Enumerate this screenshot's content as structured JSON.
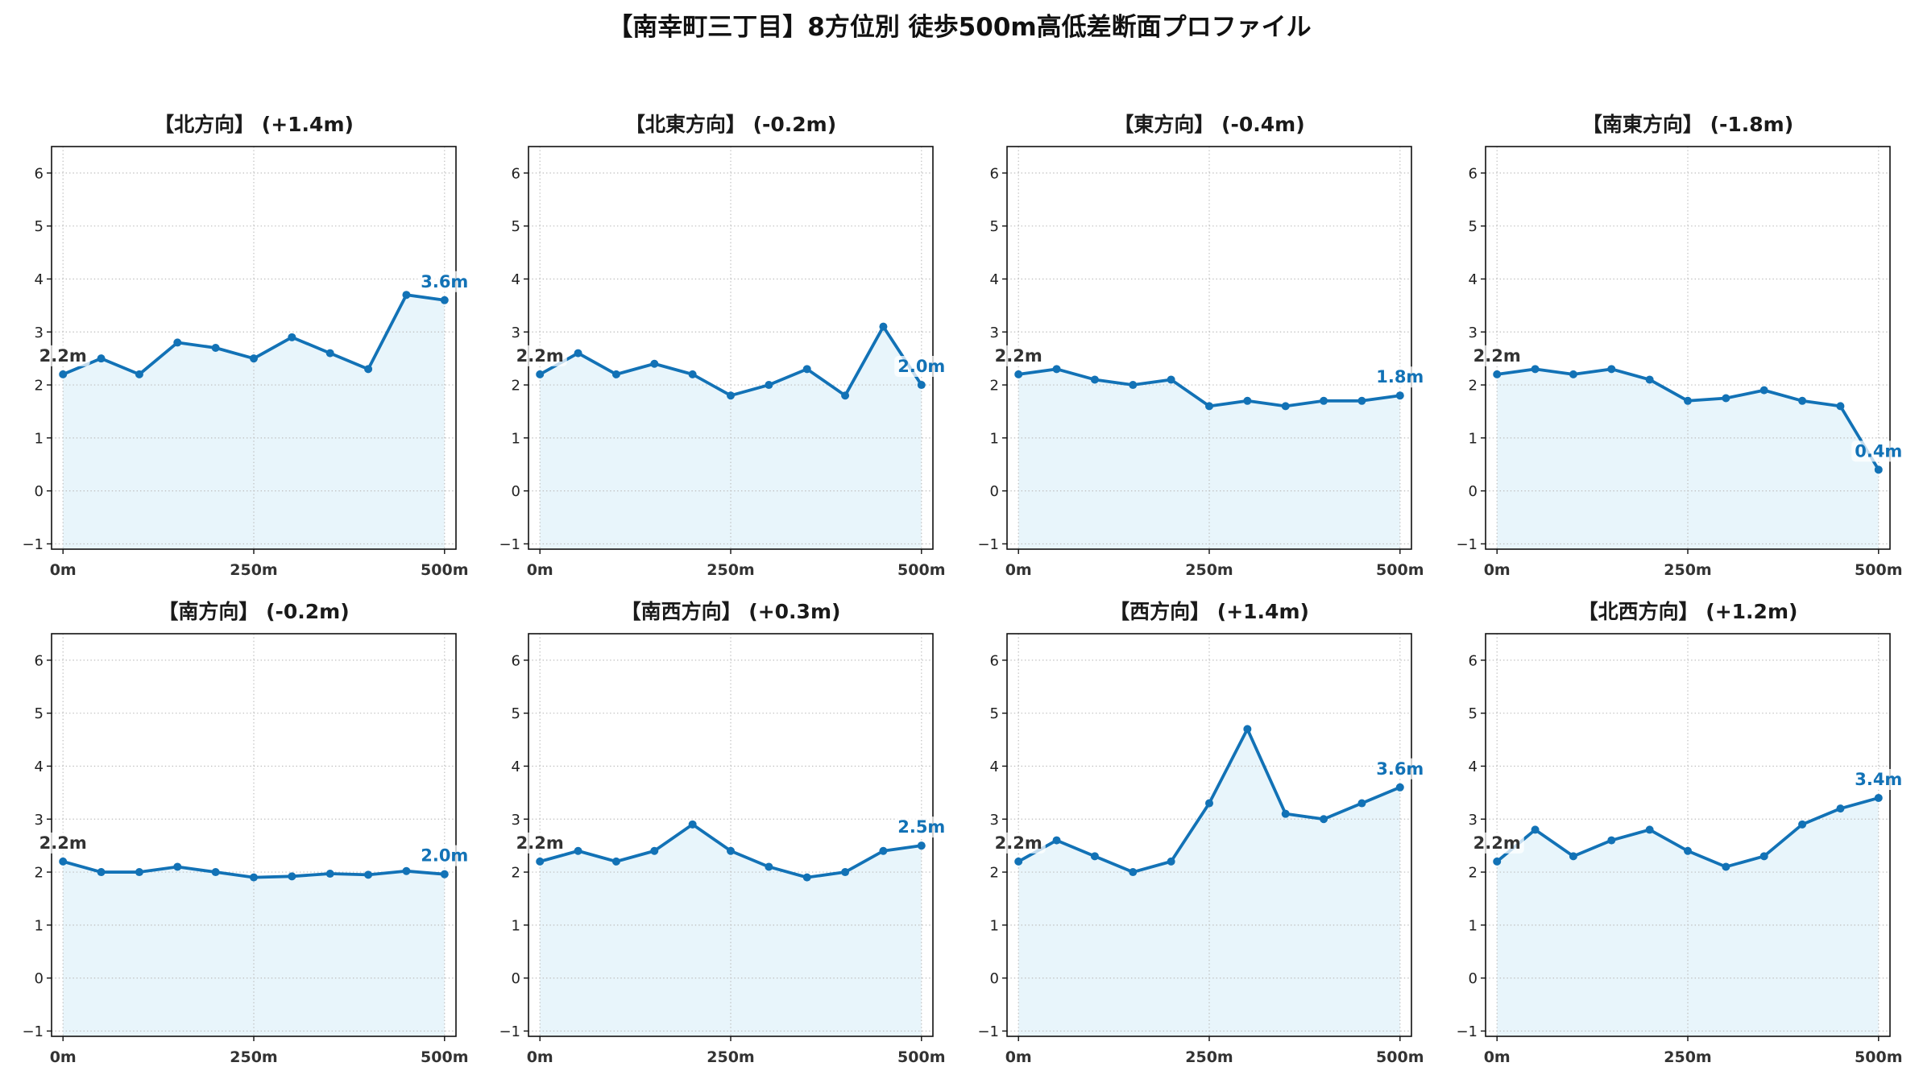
{
  "title": "【南幸町三丁目】8方位別 徒歩500m高低差断面プロファイル",
  "colors": {
    "line": "#1272b6",
    "fill": "#e8f5fb",
    "grid": "#bdbdbd",
    "frame": "#111111",
    "start_label": "#333333",
    "end_label": "#1272b6"
  },
  "chart_data": [
    {
      "type": "line",
      "area_fill": true,
      "markers": true,
      "title": "【北方向】 (+1.4m)",
      "x": [
        0,
        50,
        100,
        150,
        200,
        250,
        300,
        350,
        400,
        450,
        500
      ],
      "values": [
        2.2,
        2.5,
        2.2,
        2.8,
        2.7,
        2.5,
        2.9,
        2.6,
        2.3,
        3.7,
        3.6
      ],
      "xlim": [
        -15,
        515
      ],
      "ylim": [
        -1.1,
        6.5
      ],
      "xticks": [
        0,
        250,
        500
      ],
      "xtick_labels": [
        "0m",
        "250m",
        "500m"
      ],
      "yticks": [
        -1,
        0,
        1,
        2,
        3,
        4,
        5,
        6
      ],
      "ytick_labels": [
        "−1",
        "0",
        "1",
        "2",
        "3",
        "4",
        "5",
        "6"
      ],
      "grid": true,
      "start_label": "2.2m",
      "end_label": "3.6m"
    },
    {
      "type": "line",
      "area_fill": true,
      "markers": true,
      "title": "【北東方向】 (-0.2m)",
      "x": [
        0,
        50,
        100,
        150,
        200,
        250,
        300,
        350,
        400,
        450,
        500
      ],
      "values": [
        2.2,
        2.6,
        2.2,
        2.4,
        2.2,
        1.8,
        2.0,
        2.3,
        1.8,
        3.1,
        2.0
      ],
      "xlim": [
        -15,
        515
      ],
      "ylim": [
        -1.1,
        6.5
      ],
      "xticks": [
        0,
        250,
        500
      ],
      "xtick_labels": [
        "0m",
        "250m",
        "500m"
      ],
      "yticks": [
        -1,
        0,
        1,
        2,
        3,
        4,
        5,
        6
      ],
      "ytick_labels": [
        "−1",
        "0",
        "1",
        "2",
        "3",
        "4",
        "5",
        "6"
      ],
      "grid": true,
      "start_label": "2.2m",
      "end_label": "2.0m"
    },
    {
      "type": "line",
      "area_fill": true,
      "markers": true,
      "title": "【東方向】 (-0.4m)",
      "x": [
        0,
        50,
        100,
        150,
        200,
        250,
        300,
        350,
        400,
        450,
        500
      ],
      "values": [
        2.2,
        2.3,
        2.1,
        2.0,
        2.1,
        1.6,
        1.7,
        1.6,
        1.7,
        1.7,
        1.8
      ],
      "xlim": [
        -15,
        515
      ],
      "ylim": [
        -1.1,
        6.5
      ],
      "xticks": [
        0,
        250,
        500
      ],
      "xtick_labels": [
        "0m",
        "250m",
        "500m"
      ],
      "yticks": [
        -1,
        0,
        1,
        2,
        3,
        4,
        5,
        6
      ],
      "ytick_labels": [
        "−1",
        "0",
        "1",
        "2",
        "3",
        "4",
        "5",
        "6"
      ],
      "grid": true,
      "start_label": "2.2m",
      "end_label": "1.8m"
    },
    {
      "type": "line",
      "area_fill": true,
      "markers": true,
      "title": "【南東方向】 (-1.8m)",
      "x": [
        0,
        50,
        100,
        150,
        200,
        250,
        300,
        350,
        400,
        450,
        500
      ],
      "values": [
        2.2,
        2.3,
        2.2,
        2.3,
        2.1,
        1.7,
        1.75,
        1.9,
        1.7,
        1.6,
        0.4
      ],
      "xlim": [
        -15,
        515
      ],
      "ylim": [
        -1.1,
        6.5
      ],
      "xticks": [
        0,
        250,
        500
      ],
      "xtick_labels": [
        "0m",
        "250m",
        "500m"
      ],
      "yticks": [
        -1,
        0,
        1,
        2,
        3,
        4,
        5,
        6
      ],
      "ytick_labels": [
        "−1",
        "0",
        "1",
        "2",
        "3",
        "4",
        "5",
        "6"
      ],
      "grid": true,
      "start_label": "2.2m",
      "end_label": "0.4m"
    },
    {
      "type": "line",
      "area_fill": true,
      "markers": true,
      "title": "【南方向】 (-0.2m)",
      "x": [
        0,
        50,
        100,
        150,
        200,
        250,
        300,
        350,
        400,
        450,
        500
      ],
      "values": [
        2.2,
        2.0,
        2.0,
        2.1,
        2.0,
        1.9,
        1.92,
        1.97,
        1.95,
        2.02,
        1.96
      ],
      "xlim": [
        -15,
        515
      ],
      "ylim": [
        -1.1,
        6.5
      ],
      "xticks": [
        0,
        250,
        500
      ],
      "xtick_labels": [
        "0m",
        "250m",
        "500m"
      ],
      "yticks": [
        -1,
        0,
        1,
        2,
        3,
        4,
        5,
        6
      ],
      "ytick_labels": [
        "−1",
        "0",
        "1",
        "2",
        "3",
        "4",
        "5",
        "6"
      ],
      "grid": true,
      "start_label": "2.2m",
      "end_label": "2.0m"
    },
    {
      "type": "line",
      "area_fill": true,
      "markers": true,
      "title": "【南西方向】 (+0.3m)",
      "x": [
        0,
        50,
        100,
        150,
        200,
        250,
        300,
        350,
        400,
        450,
        500
      ],
      "values": [
        2.2,
        2.4,
        2.2,
        2.4,
        2.9,
        2.4,
        2.1,
        1.9,
        2.0,
        2.4,
        2.5
      ],
      "xlim": [
        -15,
        515
      ],
      "ylim": [
        -1.1,
        6.5
      ],
      "xticks": [
        0,
        250,
        500
      ],
      "xtick_labels": [
        "0m",
        "250m",
        "500m"
      ],
      "yticks": [
        -1,
        0,
        1,
        2,
        3,
        4,
        5,
        6
      ],
      "ytick_labels": [
        "−1",
        "0",
        "1",
        "2",
        "3",
        "4",
        "5",
        "6"
      ],
      "grid": true,
      "start_label": "2.2m",
      "end_label": "2.5m"
    },
    {
      "type": "line",
      "area_fill": true,
      "markers": true,
      "title": "【西方向】 (+1.4m)",
      "x": [
        0,
        50,
        100,
        150,
        200,
        250,
        300,
        350,
        400,
        450,
        500
      ],
      "values": [
        2.2,
        2.6,
        2.3,
        2.0,
        2.2,
        3.3,
        4.7,
        3.1,
        3.0,
        3.3,
        3.6
      ],
      "xlim": [
        -15,
        515
      ],
      "ylim": [
        -1.1,
        6.5
      ],
      "xticks": [
        0,
        250,
        500
      ],
      "xtick_labels": [
        "0m",
        "250m",
        "500m"
      ],
      "yticks": [
        -1,
        0,
        1,
        2,
        3,
        4,
        5,
        6
      ],
      "ytick_labels": [
        "−1",
        "0",
        "1",
        "2",
        "3",
        "4",
        "5",
        "6"
      ],
      "grid": true,
      "start_label": "2.2m",
      "end_label": "3.6m"
    },
    {
      "type": "line",
      "area_fill": true,
      "markers": true,
      "title": "【北西方向】 (+1.2m)",
      "x": [
        0,
        50,
        100,
        150,
        200,
        250,
        300,
        350,
        400,
        450,
        500
      ],
      "values": [
        2.2,
        2.8,
        2.3,
        2.6,
        2.8,
        2.4,
        2.1,
        2.3,
        2.9,
        3.2,
        3.4
      ],
      "xlim": [
        -15,
        515
      ],
      "ylim": [
        -1.1,
        6.5
      ],
      "xticks": [
        0,
        250,
        500
      ],
      "xtick_labels": [
        "0m",
        "250m",
        "500m"
      ],
      "yticks": [
        -1,
        0,
        1,
        2,
        3,
        4,
        5,
        6
      ],
      "ytick_labels": [
        "−1",
        "0",
        "1",
        "2",
        "3",
        "4",
        "5",
        "6"
      ],
      "grid": true,
      "start_label": "2.2m",
      "end_label": "3.4m"
    }
  ]
}
